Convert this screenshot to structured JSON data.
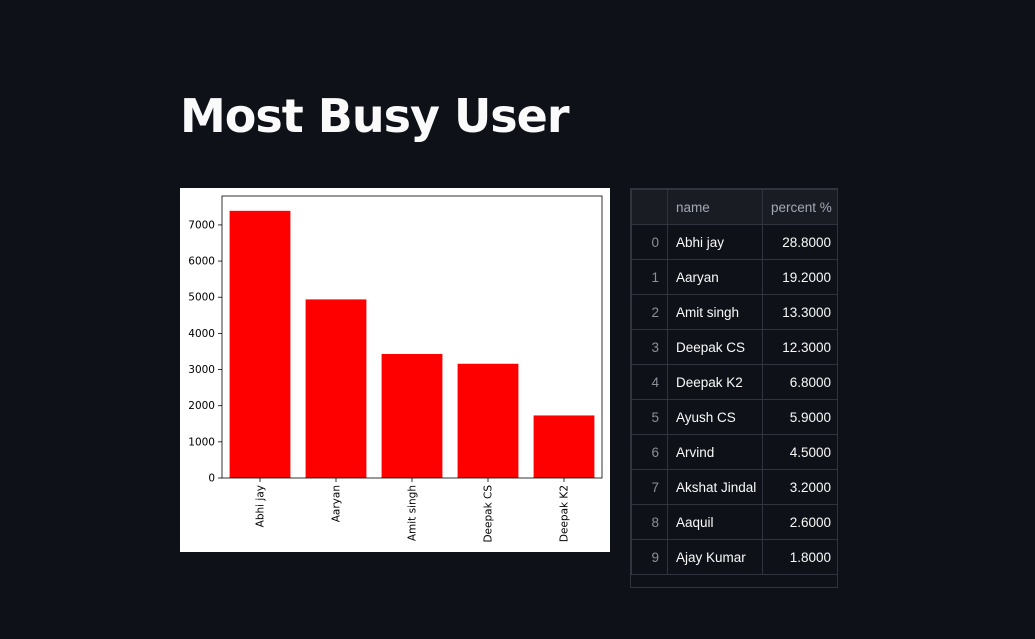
{
  "page": {
    "title": "Most Busy User"
  },
  "chart_data": {
    "type": "bar",
    "categories": [
      "Abhi jay",
      "Aaryan",
      "Amit singh",
      "Deepak CS",
      "Deepak K2"
    ],
    "values": [
      7390,
      4940,
      3430,
      3160,
      1730
    ],
    "title": "",
    "xlabel": "",
    "ylabel": "",
    "ylim": [
      0,
      7800
    ],
    "yticks": [
      0,
      1000,
      2000,
      3000,
      4000,
      5000,
      6000,
      7000
    ],
    "grid": false,
    "bar_color": "#ff0000"
  },
  "table": {
    "columns": [
      "",
      "name",
      "percent %"
    ],
    "rows": [
      {
        "index": "0",
        "name": "Abhi jay",
        "percent": "28.8000"
      },
      {
        "index": "1",
        "name": "Aaryan",
        "percent": "19.2000"
      },
      {
        "index": "2",
        "name": "Amit singh",
        "percent": "13.3000"
      },
      {
        "index": "3",
        "name": "Deepak CS",
        "percent": "12.3000"
      },
      {
        "index": "4",
        "name": "Deepak K2",
        "percent": "6.8000"
      },
      {
        "index": "5",
        "name": "Ayush CS",
        "percent": "5.9000"
      },
      {
        "index": "6",
        "name": "Arvind",
        "percent": "4.5000"
      },
      {
        "index": "7",
        "name": "Akshat Jindal",
        "percent": "3.2000"
      },
      {
        "index": "8",
        "name": "Aaquil",
        "percent": "2.6000"
      },
      {
        "index": "9",
        "name": "Ajay Kumar",
        "percent": "1.8000"
      }
    ]
  },
  "colors": {
    "background": "#0e1117",
    "text": "#fafafa",
    "bar": "#ff0000"
  }
}
